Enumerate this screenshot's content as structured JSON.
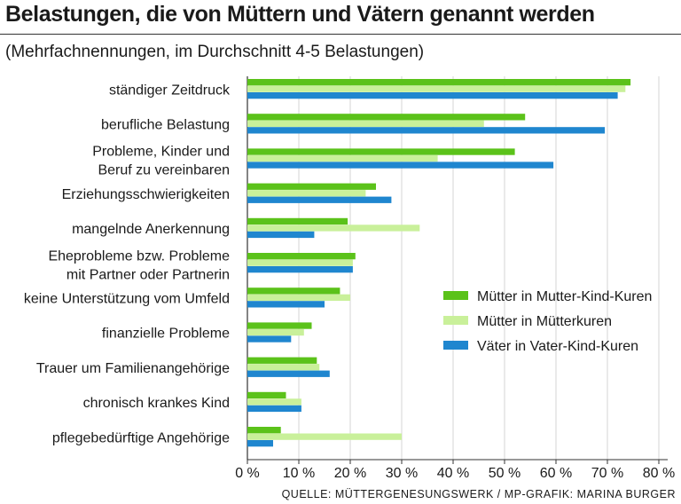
{
  "header": {
    "title": "Belastungen, die von Müttern und Vätern genannt werden",
    "subtitle": "(Mehrfachnennungen, im Durchschnitt 4-5 Belastungen)"
  },
  "footer": {
    "source": "QUELLE: MÜTTERGENESUNGSWERK / MP-GRAFIK: MARINA BURGER"
  },
  "colors": {
    "mutter_kind": "#5bc21a",
    "muetterkuren": "#c9f09a",
    "vater_kind": "#1f86cf"
  },
  "chart_data": {
    "type": "bar",
    "orientation": "horizontal",
    "title": "Belastungen, die von Müttern und Vätern genannt werden",
    "subtitle": "(Mehrfachnennungen, im Durchschnitt 4-5 Belastungen)",
    "unit": "%",
    "xlim": [
      0,
      80
    ],
    "xticks": [
      "0 %",
      "10 %",
      "20 %",
      "30 %",
      "40 %",
      "50 %",
      "60 %",
      "70 %",
      "80 %"
    ],
    "legend_position": "right",
    "categories": [
      [
        "ständiger Zeitdruck"
      ],
      [
        "berufliche Belastung"
      ],
      [
        "Probleme, Kinder und",
        "Beruf zu vereinbaren"
      ],
      [
        "Erziehungsschwierigkeiten"
      ],
      [
        "mangelnde Anerkennung"
      ],
      [
        "Eheprobleme bzw. Probleme",
        "mit Partner oder Partnerin"
      ],
      [
        "keine Unterstützung vom Umfeld"
      ],
      [
        "finanzielle Probleme"
      ],
      [
        "Trauer um Familienangehörige"
      ],
      [
        "chronisch krankes Kind"
      ],
      [
        "pflegebedürftige Angehörige"
      ]
    ],
    "series": [
      {
        "name": "Mütter in Mutter-Kind-Kuren",
        "color": "#5bc21a",
        "values": [
          74.5,
          54,
          52,
          25,
          19.5,
          21,
          18,
          12.5,
          13.5,
          7.5,
          6.5
        ]
      },
      {
        "name": "Mütter in Mütterkuren",
        "color": "#c9f09a",
        "values": [
          73.5,
          46,
          37,
          23,
          33.5,
          20.5,
          20,
          11,
          14,
          10.5,
          30
        ]
      },
      {
        "name": "Väter in Vater-Kind-Kuren",
        "color": "#1f86cf",
        "values": [
          72,
          69.5,
          59.5,
          28,
          13,
          20.5,
          15,
          8.5,
          16,
          10.5,
          5
        ]
      }
    ]
  }
}
